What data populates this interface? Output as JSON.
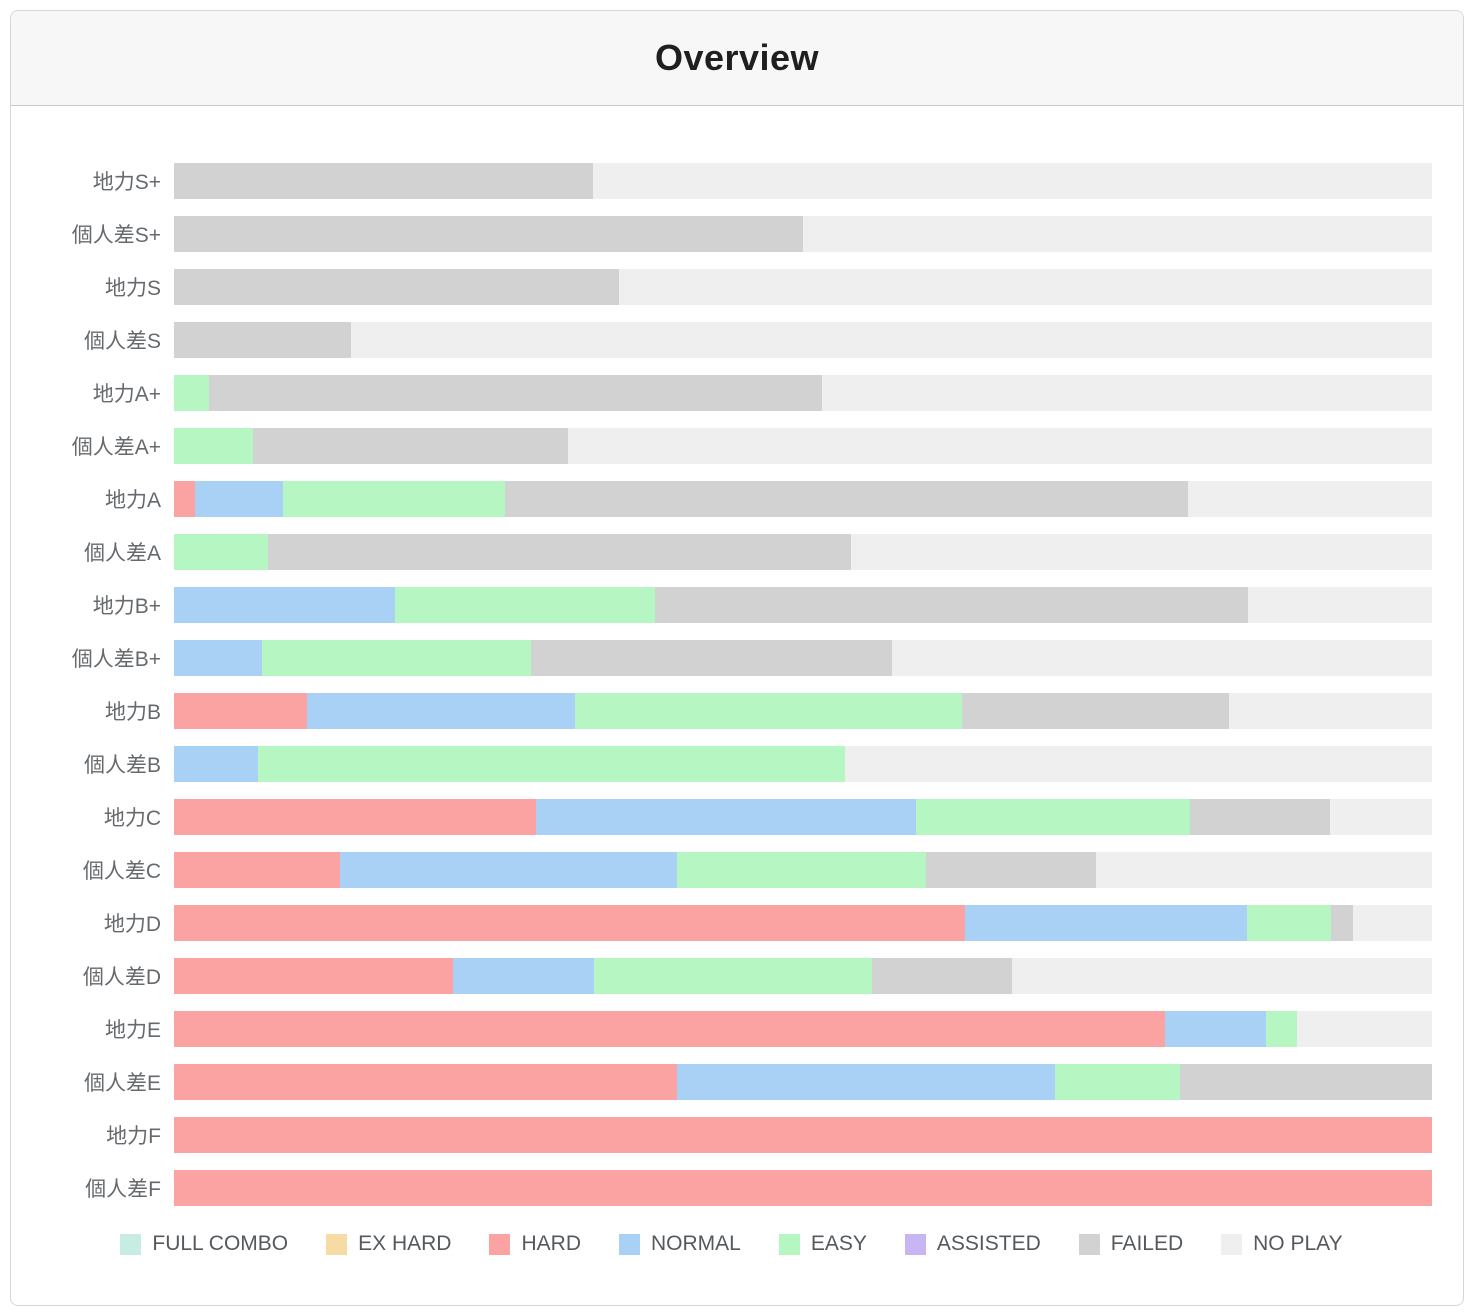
{
  "header": {
    "title": "Overview"
  },
  "chart_data": {
    "type": "bar",
    "orientation": "horizontal",
    "stacked": true,
    "unit": "percent",
    "xlim": [
      0,
      100
    ],
    "axes_hidden": true,
    "grid": false,
    "legend_position": "bottom",
    "track_color": "#efefef",
    "categories": [
      "地力S+",
      "個人差S+",
      "地力S",
      "個人差S",
      "地力A+",
      "個人差A+",
      "地力A",
      "個人差A",
      "地力B+",
      "個人差B+",
      "地力B",
      "個人差B",
      "地力C",
      "個人差C",
      "地力D",
      "個人差D",
      "地力E",
      "個人差E",
      "地力F",
      "個人差F"
    ],
    "series": [
      {
        "name": "FULL COMBO",
        "color": "#c6ece4",
        "values": [
          0,
          0,
          0,
          0,
          0,
          0,
          0,
          0,
          0,
          0,
          0,
          0,
          0,
          0,
          0,
          0,
          0,
          0,
          0,
          0
        ]
      },
      {
        "name": "EX HARD",
        "color": "#f6dca4",
        "values": [
          0,
          0,
          0,
          0,
          0,
          0,
          0,
          0,
          0,
          0,
          0,
          0,
          0,
          0,
          0,
          0,
          0,
          0,
          0,
          0
        ]
      },
      {
        "name": "HARD",
        "color": "#fba3a3",
        "values": [
          0,
          0,
          0,
          0,
          0,
          0,
          1.7,
          0,
          0,
          0,
          10.6,
          0,
          28.8,
          13.2,
          62.9,
          22.2,
          78.8,
          40,
          100,
          100
        ]
      },
      {
        "name": "NORMAL",
        "color": "#a8d1f5",
        "values": [
          0,
          0,
          0,
          0,
          0,
          0,
          7.0,
          0,
          17.6,
          7.0,
          21.3,
          6.7,
          30.2,
          26.8,
          22.4,
          11.2,
          8.0,
          30,
          0,
          0
        ]
      },
      {
        "name": "EASY",
        "color": "#b6f6c3",
        "values": [
          0,
          0,
          0,
          0,
          2.8,
          6.3,
          17.6,
          7.5,
          20.6,
          21.4,
          30.7,
          46.6,
          21.8,
          19.8,
          6.7,
          22.1,
          2.5,
          10,
          0,
          0
        ]
      },
      {
        "name": "ASSISTED",
        "color": "#c8b6f4",
        "values": [
          0,
          0,
          0,
          0,
          0,
          0,
          0,
          0,
          0,
          0,
          0,
          0,
          0,
          0,
          0,
          0,
          0,
          0,
          0,
          0
        ]
      },
      {
        "name": "FAILED",
        "color": "#d2d2d2",
        "values": [
          33.3,
          50,
          35.4,
          14.1,
          48.7,
          25,
          54.3,
          46.3,
          47.2,
          28.7,
          21.3,
          0,
          11.1,
          13.5,
          1.7,
          11.1,
          0,
          20,
          0,
          0
        ]
      },
      {
        "name": "NO PLAY",
        "color": "#efefef",
        "values": [
          66.7,
          50,
          64.6,
          85.9,
          48.5,
          68.7,
          19.4,
          46.2,
          14.6,
          42.9,
          16.1,
          46.7,
          8.1,
          26.7,
          6.3,
          33.4,
          10.7,
          0,
          0,
          0
        ]
      }
    ]
  }
}
